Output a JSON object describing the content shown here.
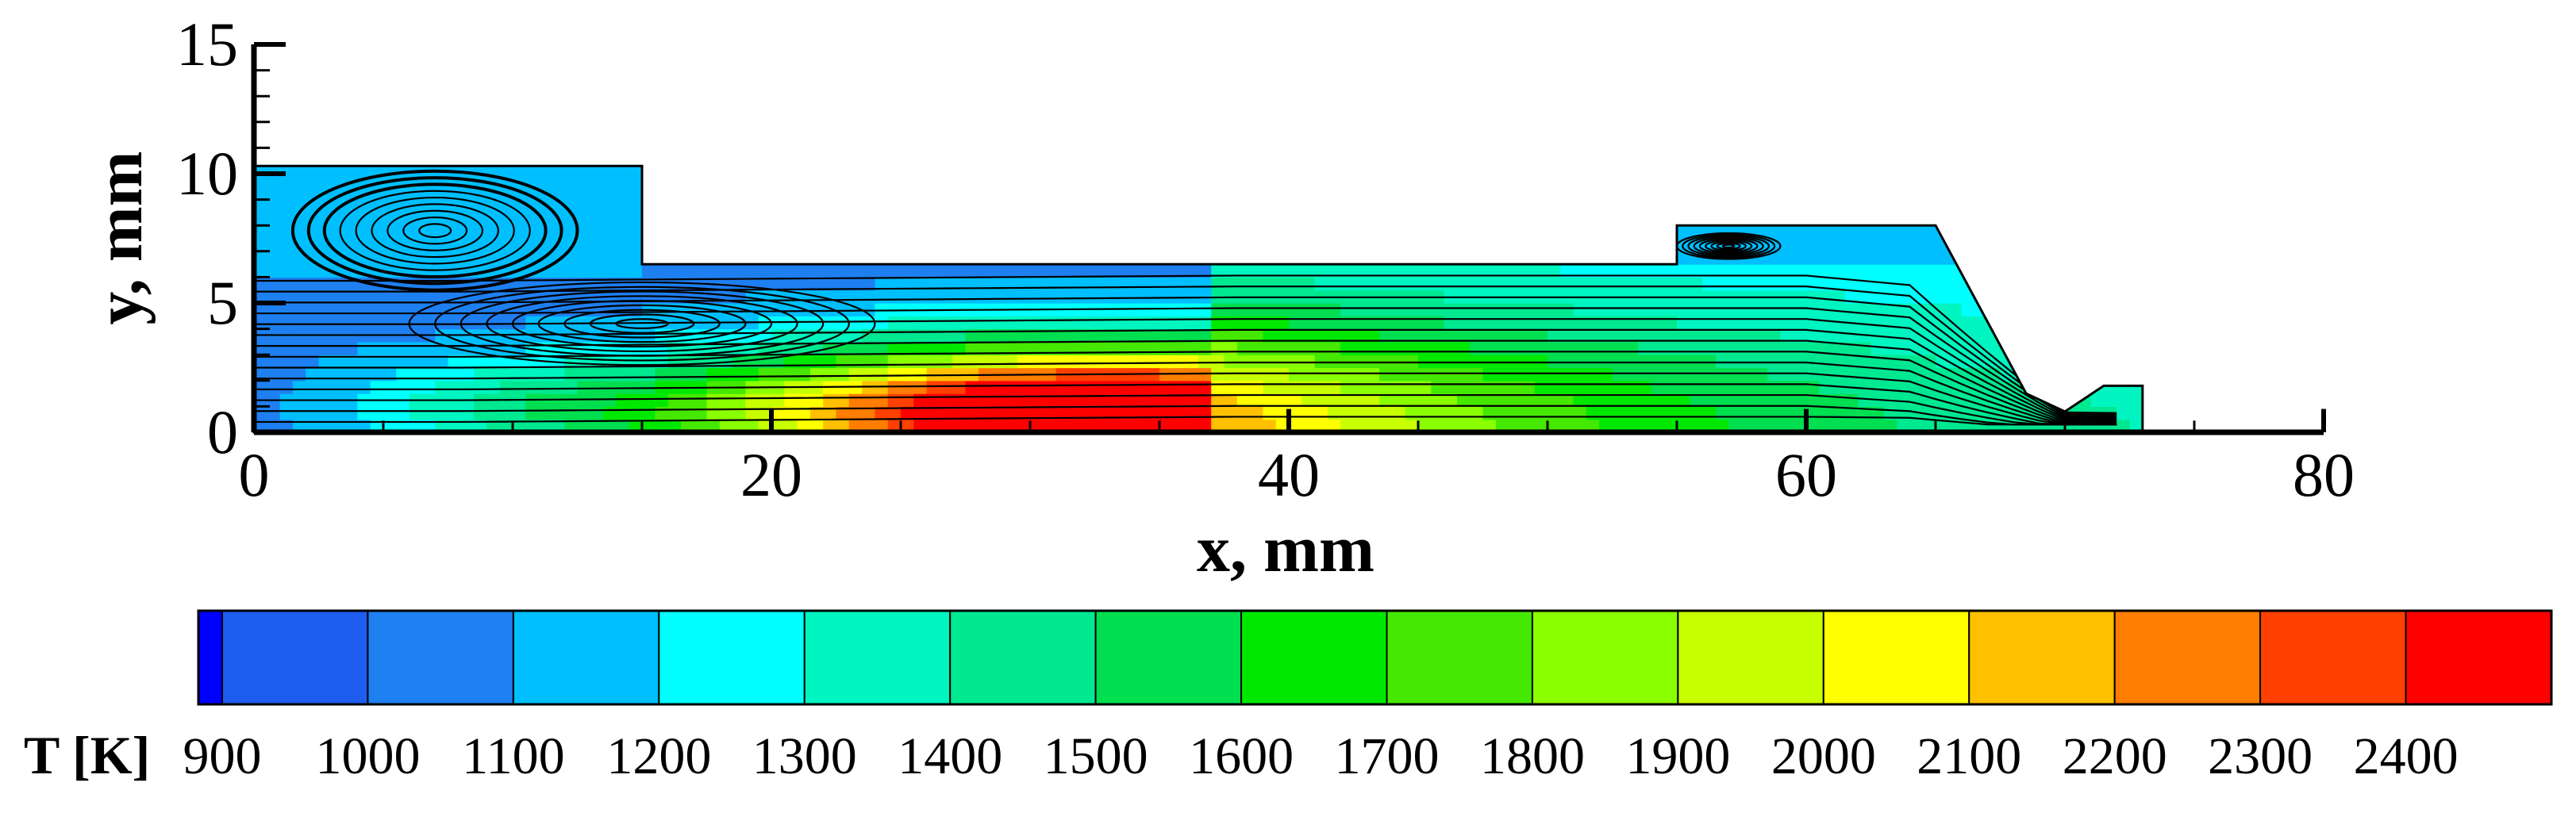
{
  "chart_data": {
    "type": "heatmap",
    "xlabel": "x, mm",
    "ylabel": "y, mm",
    "xlim": [
      0,
      80
    ],
    "ylim": [
      0,
      15
    ],
    "x_ticks": [
      "0",
      "20",
      "40",
      "60",
      "80"
    ],
    "y_ticks": [
      "0",
      "5",
      "10",
      "15"
    ],
    "domain_outline": [
      [
        0,
        0
      ],
      [
        73,
        0
      ],
      [
        73,
        1.8
      ],
      [
        71.5,
        1.8
      ],
      [
        70,
        0.8
      ],
      [
        68.5,
        1.5
      ],
      [
        65,
        8
      ],
      [
        55,
        8
      ],
      [
        55,
        6.5
      ],
      [
        15,
        6.5
      ],
      [
        15,
        10.3
      ],
      [
        0,
        10.3
      ]
    ],
    "temperature_peak": {
      "x": 33,
      "y": 0.6,
      "value": 2400
    },
    "vortices": [
      {
        "cx": 7,
        "cy": 7.8,
        "rx": 5.5,
        "ry": 2.3
      },
      {
        "cx": 15,
        "cy": 4.2,
        "rx": 9,
        "ry": 1.6
      },
      {
        "cx": 57,
        "cy": 7.2,
        "rx": 2,
        "ry": 0.5
      }
    ],
    "colorbar": {
      "title": "T [K]",
      "labels": [
        "900",
        "1000",
        "1100",
        "1200",
        "1300",
        "1400",
        "1500",
        "1600",
        "1700",
        "1800",
        "1900",
        "2000",
        "2100",
        "2200",
        "2300",
        "2400"
      ],
      "colors": [
        "#0000ff",
        "#1f5cf0",
        "#1e7ff0",
        "#00bfff",
        "#00ffff",
        "#00f5c0",
        "#00e890",
        "#00df50",
        "#00e800",
        "#44e800",
        "#8aff00",
        "#c8ff00",
        "#ffff00",
        "#ffc000",
        "#ff7d00",
        "#ff4000",
        "#ff0000"
      ]
    }
  }
}
